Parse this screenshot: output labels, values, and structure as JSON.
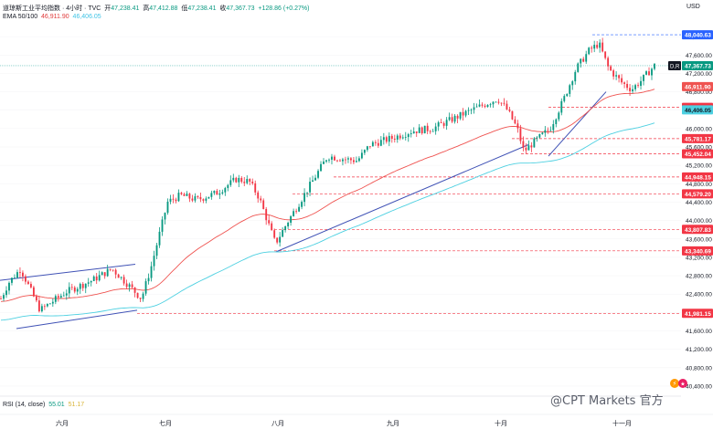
{
  "header": {
    "symbol": "道琼斯工业平均指数 · 4小时 · TVC",
    "open_label": "开",
    "open": "47,238.41",
    "high_label": "高",
    "high": "47,412.88",
    "low_label": "低",
    "low": "47,238.41",
    "close_label": "收",
    "close": "47,367.73",
    "change": "+128.86 (+0.27%)",
    "ema_label": "EMA 50/100",
    "ema50": "46,911.90",
    "ema100": "46,406.05",
    "currency": "USD"
  },
  "rsi": {
    "label": "RSI (14, close)",
    "value1": "55.01",
    "value2": "51.17"
  },
  "watermark": "@CPT Markets 官方",
  "colors": {
    "up": "#089981",
    "down": "#f23645",
    "ema50": "#ef5350",
    "ema100": "#4dd0e1",
    "trendline": "#3f51b5",
    "level": "#f23645",
    "price": "#2962ff",
    "axis": "#ffffff"
  },
  "chart_data": {
    "type": "candlestick",
    "x_labels": [
      "六月",
      "七月",
      "八月",
      "九月",
      "十月",
      "十一月"
    ],
    "y_ticks": [
      "48,000.00",
      "47,600.00",
      "47,200.00",
      "46,800.00",
      "46,400.00",
      "46,000.00",
      "45,600.00",
      "45,200.00",
      "44,800.00",
      "44,400.00",
      "44,000.00",
      "43,600.00",
      "43,200.00",
      "42,800.00",
      "42,400.00",
      "42,000.00",
      "41,600.00",
      "41,200.00",
      "40,800.00",
      "40,400.00"
    ],
    "ylim": [
      40300,
      48300
    ],
    "high_marker": "48,040.63",
    "last_price": "47,367.73",
    "last_price_tag": "D,R",
    "ema50_value": "46,911.90",
    "ema100_value": "46,406.05",
    "levels": [
      "46,461.51",
      "45,781.17",
      "45,452.04",
      "44,948.15",
      "44,579.20",
      "43,807.83",
      "43,340.69",
      "41,981.15"
    ],
    "candles_count": 240
  }
}
